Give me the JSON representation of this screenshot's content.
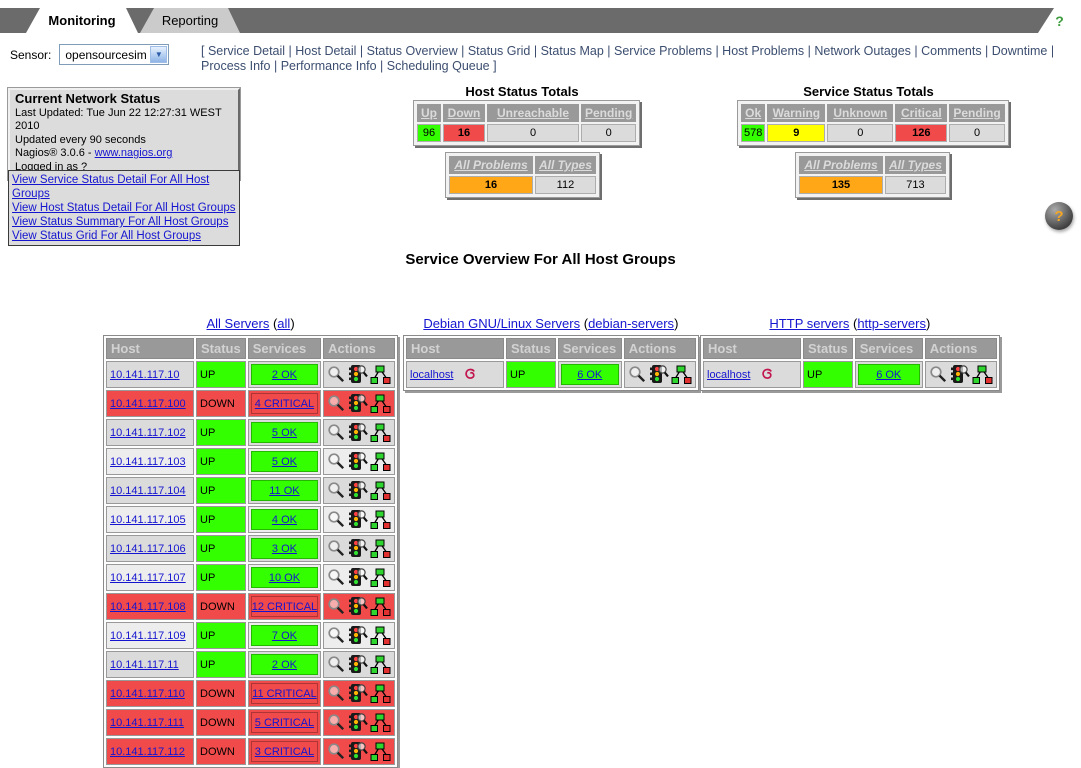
{
  "colors": {
    "ok_green": "#33FF00",
    "down_red": "#F04A4A",
    "warning_yellow": "#FFFF00",
    "problem_orange": "#FFA716",
    "neutral_gray": "#DBDBDB",
    "row_even": "#DBDBDB",
    "row_odd": "#EDEDED",
    "header_gray": "#999999"
  },
  "tab_bar": {
    "monitoring_label": "Monitoring",
    "reporting_label": "Reporting",
    "help_label": "?"
  },
  "sensor": {
    "label": "Sensor:",
    "selected_value": "opensourcesim"
  },
  "nav": {
    "open_bracket": "[",
    "close_bracket": "]",
    "separator": "|",
    "links": [
      "Service Detail",
      "Host Detail",
      "Status Overview",
      "Status Grid",
      "Status Map",
      "Service Problems",
      "Host Problems",
      "Network Outages",
      "Comments",
      "Downtime",
      "Process Info",
      "Performance Info",
      "Scheduling Queue"
    ]
  },
  "status_box": {
    "title": "Current Network Status",
    "last_updated": "Last Updated: Tue Jun 22 12:27:31 WEST 2010",
    "update_interval": "Updated every 90 seconds",
    "version_text": "Nagios® 3.0.6 - ",
    "version_link": "www.nagios.org",
    "logged_in": "Logged in as ?"
  },
  "quick_links": [
    "View Service Status Detail For All Host Groups",
    "View Host Status Detail For All Host Groups",
    "View Status Summary For All Host Groups",
    "View Status Grid For All Host Groups"
  ],
  "host_totals": {
    "title": "Host Status Totals",
    "columns": [
      {
        "label": "Up",
        "value": "96",
        "color": "ok_green",
        "bold": false
      },
      {
        "label": "Down",
        "value": "16",
        "color": "down_red",
        "bold": true
      },
      {
        "label": "Unreachable",
        "value": "0",
        "color": "neutral_gray",
        "bold": false
      },
      {
        "label": "Pending",
        "value": "0",
        "color": "neutral_gray",
        "bold": false
      }
    ],
    "problems": [
      {
        "label": "All Problems",
        "value": "16",
        "color": "problem_orange",
        "bold": true
      },
      {
        "label": "All Types",
        "value": "112",
        "color": "neutral_gray",
        "bold": false
      }
    ]
  },
  "service_totals": {
    "title": "Service Status Totals",
    "columns": [
      {
        "label": "Ok",
        "value": "578",
        "color": "ok_green",
        "bold": false
      },
      {
        "label": "Warning",
        "value": "9",
        "color": "warning_yellow",
        "bold": true
      },
      {
        "label": "Unknown",
        "value": "0",
        "color": "neutral_gray",
        "bold": false
      },
      {
        "label": "Critical",
        "value": "126",
        "color": "down_red",
        "bold": true
      },
      {
        "label": "Pending",
        "value": "0",
        "color": "neutral_gray",
        "bold": false
      }
    ],
    "problems": [
      {
        "label": "All Problems",
        "value": "135",
        "color": "problem_orange",
        "bold": true
      },
      {
        "label": "All Types",
        "value": "713",
        "color": "neutral_gray",
        "bold": false
      }
    ]
  },
  "help_button": {
    "label": "?"
  },
  "overview": {
    "title": "Service Overview For All Host Groups",
    "column_headers": [
      "Host",
      "Status",
      "Services",
      "Actions"
    ],
    "action_icons": [
      "service-detail-magnifier-icon",
      "status-detail-traffic-light-icon",
      "status-map-icon"
    ],
    "groups": [
      {
        "name": "All Servers",
        "alias": "all",
        "rows": [
          {
            "host": "10.141.117.10",
            "status": "UP",
            "services": "2 OK"
          },
          {
            "host": "10.141.117.100",
            "status": "DOWN",
            "services": "4 CRITICAL"
          },
          {
            "host": "10.141.117.102",
            "status": "UP",
            "services": "5 OK"
          },
          {
            "host": "10.141.117.103",
            "status": "UP",
            "services": "5 OK"
          },
          {
            "host": "10.141.117.104",
            "status": "UP",
            "services": "11 OK"
          },
          {
            "host": "10.141.117.105",
            "status": "UP",
            "services": "4 OK"
          },
          {
            "host": "10.141.117.106",
            "status": "UP",
            "services": "3 OK"
          },
          {
            "host": "10.141.117.107",
            "status": "UP",
            "services": "10 OK"
          },
          {
            "host": "10.141.117.108",
            "status": "DOWN",
            "services": "12 CRITICAL"
          },
          {
            "host": "10.141.117.109",
            "status": "UP",
            "services": "7 OK"
          },
          {
            "host": "10.141.117.11",
            "status": "UP",
            "services": "2 OK"
          },
          {
            "host": "10.141.117.110",
            "status": "DOWN",
            "services": "11 CRITICAL"
          },
          {
            "host": "10.141.117.111",
            "status": "DOWN",
            "services": "5 CRITICAL"
          },
          {
            "host": "10.141.117.112",
            "status": "DOWN",
            "services": "3 CRITICAL"
          }
        ]
      },
      {
        "name": "Debian GNU/Linux Servers",
        "alias": "debian-servers",
        "rows": [
          {
            "host": "localhost",
            "host_icon": "debian-swirl-icon",
            "status": "UP",
            "services": "6 OK"
          }
        ]
      },
      {
        "name": "HTTP servers",
        "alias": "http-servers",
        "rows": [
          {
            "host": "localhost",
            "host_icon": "debian-swirl-icon",
            "status": "UP",
            "services": "6 OK"
          }
        ]
      }
    ]
  }
}
